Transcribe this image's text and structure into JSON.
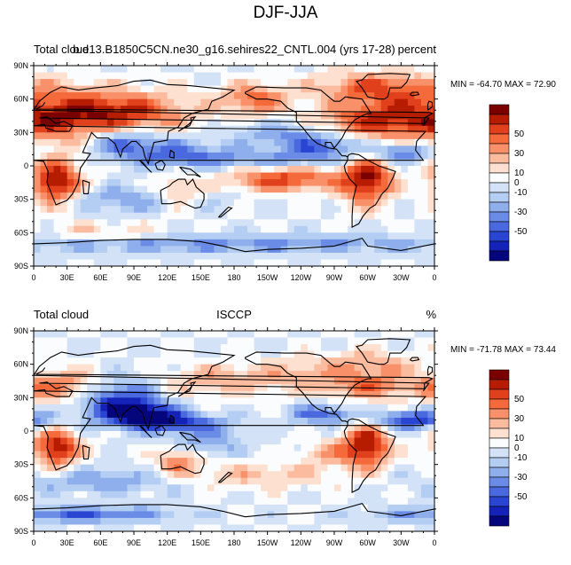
{
  "page_title": "DJF-JJA",
  "chart_data": [
    {
      "type": "heatmap",
      "left_label": "Total cloud",
      "center_label": "b.e13.B1850C5CN.ne30_g16.sehires22_CNTL.004 (yrs 17-28)",
      "right_label": "percent",
      "min_max": "MIN = -64.70 MAX =  72.90",
      "x_ticks": [
        "0",
        "30E",
        "60E",
        "90E",
        "120E",
        "150E",
        "180",
        "150W",
        "120W",
        "90W",
        "60W",
        "30W",
        "0"
      ],
      "y_ticks": [
        "90N",
        "60N",
        "30N",
        "0",
        "30S",
        "60S",
        "90S"
      ],
      "xlim": [
        0,
        360
      ],
      "ylim": [
        -90,
        90
      ],
      "colorbar": {
        "labels": [
          "50",
          "30",
          "10",
          "0",
          "-10",
          "-30",
          "-50"
        ],
        "colors": [
          "#7a0000",
          "#b51c00",
          "#e0401b",
          "#f46a3a",
          "#f8916a",
          "#fbbb9e",
          "#fde0d0",
          "#fbfcfd",
          "#d3e2f7",
          "#b3cef2",
          "#8faeec",
          "#6a8ce6",
          "#4a69df",
          "#2a45d2",
          "#1422b8",
          "#06067c"
        ]
      },
      "anomalies": [
        {
          "lon": 20,
          "lat": 45,
          "sx": 55,
          "sy": 18,
          "v": 0.75
        },
        {
          "lon": 90,
          "lat": 48,
          "sx": 40,
          "sy": 12,
          "v": 0.45
        },
        {
          "lon": 20,
          "lat": -15,
          "sx": 16,
          "sy": 14,
          "v": 0.95
        },
        {
          "lon": 130,
          "lat": -25,
          "sx": 16,
          "sy": 10,
          "v": 0.45
        },
        {
          "lon": 300,
          "lat": -12,
          "sx": 16,
          "sy": 16,
          "v": 0.9
        },
        {
          "lon": 225,
          "lat": -12,
          "sx": 35,
          "sy": 8,
          "v": 0.7
        },
        {
          "lon": 300,
          "lat": 40,
          "sx": 35,
          "sy": 10,
          "v": 0.5
        },
        {
          "lon": 305,
          "lat": 70,
          "sx": 35,
          "sy": 10,
          "v": 0.55
        },
        {
          "lon": 200,
          "lat": 60,
          "sx": 22,
          "sy": 10,
          "v": 0.55
        },
        {
          "lon": 80,
          "lat": 22,
          "sx": 25,
          "sy": 10,
          "v": -0.6
        },
        {
          "lon": 130,
          "lat": 12,
          "sx": 30,
          "sy": 8,
          "v": -0.45
        },
        {
          "lon": 260,
          "lat": 18,
          "sx": 30,
          "sy": 8,
          "v": -0.55
        },
        {
          "lon": 330,
          "lat": 12,
          "sx": 20,
          "sy": 6,
          "v": -0.6
        },
        {
          "lon": 200,
          "lat": 5,
          "sx": 60,
          "sy": 6,
          "v": -0.35
        },
        {
          "lon": 90,
          "lat": -30,
          "sx": 50,
          "sy": 8,
          "v": -0.35
        },
        {
          "lon": 180,
          "lat": -70,
          "sx": 180,
          "sy": 6,
          "v": -0.4
        },
        {
          "lon": 220,
          "lat": 30,
          "sx": 30,
          "sy": 8,
          "v": -0.3
        },
        {
          "lon": 60,
          "lat": -60,
          "sx": 40,
          "sy": 6,
          "v": 0.25
        }
      ]
    },
    {
      "type": "heatmap",
      "left_label": "Total cloud",
      "center_label": "ISCCP",
      "right_label": "%",
      "min_max": "MIN = -71.78 MAX =  73.44",
      "x_ticks": [
        "0",
        "30E",
        "60E",
        "90E",
        "120E",
        "150E",
        "180",
        "150W",
        "120W",
        "90W",
        "60W",
        "30W",
        "0"
      ],
      "y_ticks": [
        "90N",
        "60N",
        "30N",
        "0",
        "30S",
        "60S",
        "90S"
      ],
      "xlim": [
        0,
        360
      ],
      "ylim": [
        -90,
        90
      ],
      "colorbar": {
        "labels": [
          "50",
          "30",
          "10",
          "0",
          "-10",
          "-30",
          "-50"
        ],
        "colors": [
          "#7a0000",
          "#b51c00",
          "#e0401b",
          "#f46a3a",
          "#f8916a",
          "#fbbb9e",
          "#fde0d0",
          "#fbfcfd",
          "#d3e2f7",
          "#b3cef2",
          "#8faeec",
          "#6a8ce6",
          "#4a69df",
          "#2a45d2",
          "#1422b8",
          "#06067c"
        ]
      },
      "anomalies": [
        {
          "lon": 25,
          "lat": 40,
          "sx": 30,
          "sy": 10,
          "v": 0.55
        },
        {
          "lon": 20,
          "lat": -15,
          "sx": 14,
          "sy": 12,
          "v": 0.9
        },
        {
          "lon": 300,
          "lat": -12,
          "sx": 14,
          "sy": 14,
          "v": 0.85
        },
        {
          "lon": 130,
          "lat": -25,
          "sx": 15,
          "sy": 10,
          "v": 0.55
        },
        {
          "lon": 300,
          "lat": 40,
          "sx": 30,
          "sy": 8,
          "v": 0.5
        },
        {
          "lon": 160,
          "lat": 45,
          "sx": 30,
          "sy": 10,
          "v": 0.35
        },
        {
          "lon": 230,
          "lat": 50,
          "sx": 30,
          "sy": 10,
          "v": 0.3
        },
        {
          "lon": 200,
          "lat": -40,
          "sx": 50,
          "sy": 8,
          "v": 0.3
        },
        {
          "lon": 270,
          "lat": -20,
          "sx": 20,
          "sy": 8,
          "v": 0.35
        },
        {
          "lon": 75,
          "lat": 30,
          "sx": 25,
          "sy": 12,
          "v": -0.7
        },
        {
          "lon": 95,
          "lat": 15,
          "sx": 25,
          "sy": 8,
          "v": -0.85
        },
        {
          "lon": 130,
          "lat": 8,
          "sx": 30,
          "sy": 6,
          "v": -0.55
        },
        {
          "lon": 340,
          "lat": 10,
          "sx": 25,
          "sy": 6,
          "v": -0.75
        },
        {
          "lon": 260,
          "lat": 15,
          "sx": 20,
          "sy": 6,
          "v": -0.6
        },
        {
          "lon": 60,
          "lat": -45,
          "sx": 50,
          "sy": 8,
          "v": -0.35
        },
        {
          "lon": 150,
          "lat": -10,
          "sx": 25,
          "sy": 10,
          "v": -0.4
        },
        {
          "lon": 40,
          "lat": -75,
          "sx": 60,
          "sy": 5,
          "v": -0.6
        },
        {
          "lon": 300,
          "lat": 60,
          "sx": 30,
          "sy": 8,
          "v": 0.4
        }
      ]
    }
  ],
  "coastlines": [
    [
      [
        350,
        36
      ],
      [
        355,
        43
      ],
      [
        0,
        50
      ],
      [
        5,
        58
      ],
      [
        15,
        66
      ],
      [
        25,
        71
      ],
      [
        40,
        68
      ],
      [
        55,
        70
      ],
      [
        75,
        72
      ],
      [
        90,
        76
      ],
      [
        105,
        77
      ],
      [
        120,
        73
      ],
      [
        140,
        72
      ],
      [
        160,
        70
      ],
      [
        180,
        68
      ],
      [
        170,
        62
      ],
      [
        160,
        58
      ],
      [
        157,
        51
      ],
      [
        142,
        47
      ],
      [
        135,
        43
      ],
      [
        130,
        35
      ],
      [
        121,
        31
      ],
      [
        120,
        23
      ],
      [
        108,
        21
      ],
      [
        105,
        10
      ],
      [
        103,
        2
      ],
      [
        100,
        8
      ],
      [
        98,
        16
      ],
      [
        92,
        22
      ],
      [
        88,
        22
      ],
      [
        80,
        15
      ],
      [
        78,
        8
      ],
      [
        73,
        20
      ],
      [
        67,
        25
      ],
      [
        57,
        25
      ],
      [
        52,
        30
      ],
      [
        44,
        12
      ],
      [
        51,
        11
      ],
      [
        42,
        -2
      ],
      [
        40,
        -15
      ],
      [
        35,
        -25
      ],
      [
        30,
        -31
      ],
      [
        20,
        -35
      ],
      [
        18,
        -30
      ],
      [
        12,
        -15
      ],
      [
        13,
        -5
      ],
      [
        9,
        4
      ],
      [
        0,
        5
      ],
      [
        -10,
        5
      ],
      [
        -17,
        14
      ],
      [
        -16,
        22
      ],
      [
        -8,
        31
      ],
      [
        0,
        36
      ],
      [
        10,
        37
      ],
      [
        11,
        34
      ],
      [
        20,
        31
      ],
      [
        32,
        31
      ],
      [
        35,
        36
      ],
      [
        27,
        40
      ],
      [
        20,
        38
      ],
      [
        12,
        44
      ],
      [
        5,
        43
      ],
      [
        -9,
        38
      ],
      [
        -9,
        43
      ],
      [
        -2,
        47
      ],
      [
        -5,
        48
      ],
      [
        2,
        51
      ],
      [
        8,
        54
      ],
      [
        10,
        57
      ]
    ],
    [
      [
        190,
        65
      ],
      [
        200,
        60
      ],
      [
        210,
        60
      ],
      [
        222,
        58
      ],
      [
        228,
        52
      ],
      [
        236,
        48
      ],
      [
        236,
        40
      ],
      [
        242,
        34
      ],
      [
        245,
        30
      ],
      [
        250,
        24
      ],
      [
        255,
        20
      ],
      [
        265,
        16
      ],
      [
        272,
        15
      ],
      [
        277,
        9
      ],
      [
        280,
        9
      ],
      [
        282,
        8
      ],
      [
        283,
        10
      ],
      [
        286,
        11
      ],
      [
        292,
        10
      ],
      [
        300,
        5
      ],
      [
        310,
        0
      ],
      [
        325,
        -5
      ],
      [
        323,
        -10
      ],
      [
        318,
        -20
      ],
      [
        313,
        -25
      ],
      [
        307,
        -35
      ],
      [
        302,
        -38
      ],
      [
        296,
        -45
      ],
      [
        292,
        -52
      ],
      [
        286,
        -55
      ],
      [
        286,
        -45
      ],
      [
        287,
        -30
      ],
      [
        290,
        -18
      ],
      [
        284,
        -12
      ],
      [
        280,
        -5
      ],
      [
        279,
        0
      ],
      [
        282,
        5
      ],
      [
        282,
        8
      ]
    ],
    [
      [
        262,
        18
      ],
      [
        262,
        21
      ],
      [
        267,
        21
      ],
      [
        270,
        16
      ],
      [
        277,
        25
      ],
      [
        280,
        31
      ],
      [
        283,
        35
      ],
      [
        288,
        41
      ],
      [
        295,
        45
      ],
      [
        300,
        47
      ],
      [
        303,
        47
      ],
      [
        300,
        52
      ],
      [
        295,
        60
      ],
      [
        287,
        61
      ],
      [
        280,
        62
      ],
      [
        275,
        58
      ],
      [
        270,
        58
      ],
      [
        265,
        62
      ],
      [
        258,
        68
      ],
      [
        245,
        70
      ],
      [
        225,
        70
      ],
      [
        200,
        71
      ],
      [
        190,
        66
      ],
      [
        190,
        65
      ]
    ],
    [
      [
        114,
        -22
      ],
      [
        115,
        -34
      ],
      [
        123,
        -34
      ],
      [
        132,
        -32
      ],
      [
        138,
        -35
      ],
      [
        145,
        -38
      ],
      [
        150,
        -37
      ],
      [
        153,
        -30
      ],
      [
        153,
        -25
      ],
      [
        146,
        -19
      ],
      [
        143,
        -12
      ],
      [
        138,
        -17
      ],
      [
        136,
        -12
      ],
      [
        130,
        -12
      ],
      [
        125,
        -15
      ],
      [
        122,
        -18
      ],
      [
        114,
        -22
      ]
    ],
    [
      [
        300,
        62
      ],
      [
        310,
        60
      ],
      [
        315,
        60
      ],
      [
        318,
        62
      ],
      [
        320,
        70
      ],
      [
        330,
        70
      ],
      [
        335,
        75
      ],
      [
        338,
        82
      ],
      [
        320,
        83
      ],
      [
        300,
        82
      ],
      [
        295,
        77
      ],
      [
        290,
        76
      ],
      [
        295,
        70
      ],
      [
        300,
        62
      ]
    ],
    [
      [
        95,
        5
      ],
      [
        105,
        -5
      ],
      [
        106,
        -6
      ],
      [
        102,
        -2
      ],
      [
        98,
        3
      ],
      [
        95,
        5
      ]
    ],
    [
      [
        109,
        2
      ],
      [
        115,
        5
      ],
      [
        118,
        1
      ],
      [
        116,
        -4
      ],
      [
        111,
        -3
      ],
      [
        109,
        2
      ]
    ],
    [
      [
        131,
        -1
      ],
      [
        141,
        -3
      ],
      [
        150,
        -10
      ],
      [
        145,
        -8
      ],
      [
        138,
        -8
      ],
      [
        131,
        -1
      ]
    ],
    [
      [
        130,
        31
      ],
      [
        135,
        34
      ],
      [
        140,
        36
      ],
      [
        142,
        40
      ],
      [
        141,
        43
      ],
      [
        145,
        44
      ],
      [
        140,
        38
      ],
      [
        136,
        35
      ],
      [
        130,
        31
      ]
    ],
    [
      [
        0,
        -70
      ],
      [
        30,
        -69
      ],
      [
        60,
        -67
      ],
      [
        90,
        -66
      ],
      [
        120,
        -66
      ],
      [
        150,
        -68
      ],
      [
        170,
        -72
      ],
      [
        190,
        -77
      ],
      [
        210,
        -75
      ],
      [
        240,
        -74
      ],
      [
        270,
        -72
      ],
      [
        295,
        -65
      ],
      [
        300,
        -72
      ],
      [
        330,
        -76
      ],
      [
        360,
        -70
      ]
    ],
    [
      [
        166,
        -46
      ],
      [
        172,
        -40
      ],
      [
        175,
        -37
      ],
      [
        178,
        -38
      ],
      [
        174,
        -41
      ],
      [
        168,
        -46
      ],
      [
        166,
        -46
      ]
    ],
    [
      [
        44,
        -13
      ],
      [
        50,
        -15
      ],
      [
        49,
        -25
      ],
      [
        45,
        -25
      ],
      [
        44,
        -13
      ]
    ],
    [
      [
        338,
        64
      ],
      [
        340,
        66
      ],
      [
        345,
        66
      ],
      [
        346,
        64
      ],
      [
        340,
        63
      ],
      [
        338,
        64
      ]
    ],
    [
      [
        354,
        50
      ],
      [
        358,
        53
      ],
      [
        358,
        57
      ],
      [
        355,
        58
      ],
      [
        354,
        55
      ],
      [
        354,
        50
      ]
    ],
    [
      [
        122,
        8
      ],
      [
        126,
        7
      ],
      [
        126,
        12
      ],
      [
        123,
        14
      ],
      [
        122,
        8
      ]
    ]
  ]
}
